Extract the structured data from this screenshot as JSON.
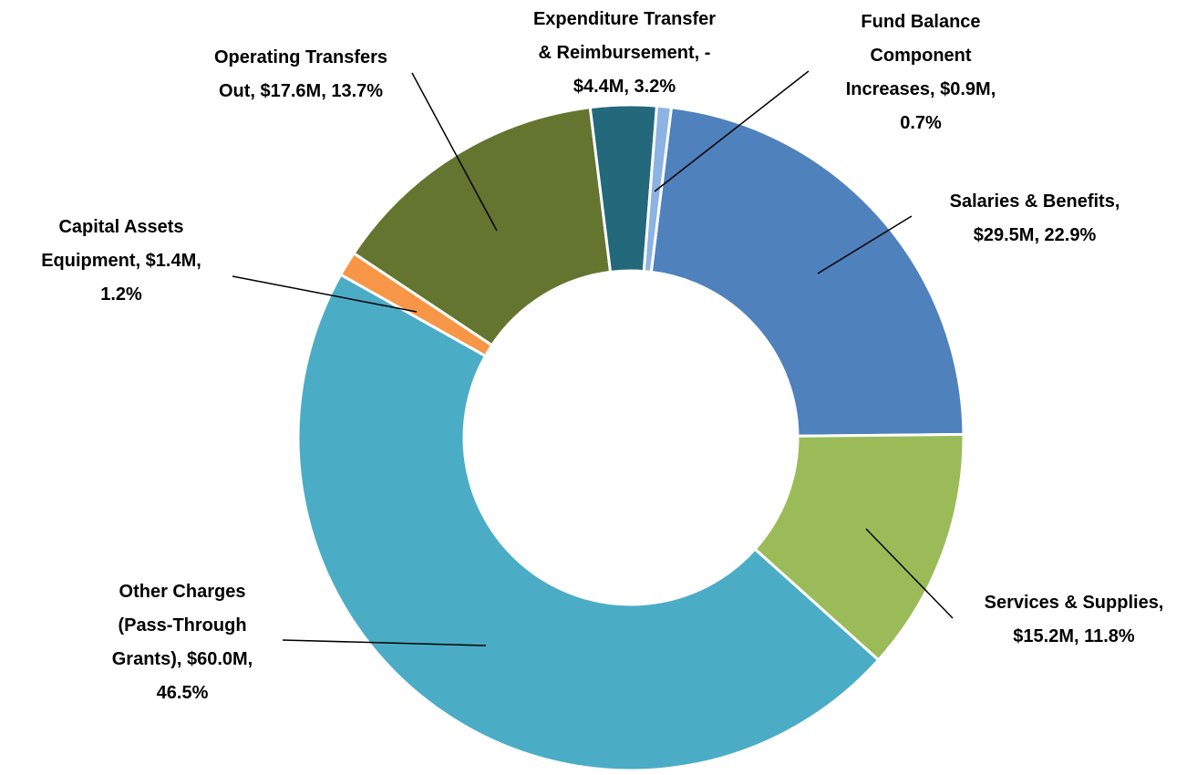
{
  "chart_data": {
    "type": "donut",
    "categories": [
      "Salaries & Benefits",
      "Services & Supplies",
      "Other Charges (Pass-Through Grants)",
      "Capital Assets Equipment",
      "Operating Transfers Out",
      "Expenditure Transfer & Reimbursement",
      "Fund Balance Component Increases"
    ],
    "values": [
      22.9,
      11.8,
      46.5,
      1.2,
      13.7,
      3.2,
      0.7
    ],
    "value_labels": [
      "Salaries & Benefits, $29.5M, 22.9%",
      "Services & Supplies, $15.2M, 11.8%",
      "Other Charges (Pass-Through Grants), $60.0M, 46.5%",
      "Capital Assets Equipment, $1.4M, 1.2%",
      "Operating Transfers Out, $17.6M, 13.7%",
      "Expenditure Transfer & Reimbursement, -$4.4M, 3.2%",
      "Fund Balance Component Increases, $0.9M, 0.7%"
    ],
    "colors": [
      "#4f81bd",
      "#9bbb59",
      "#4bacc6",
      "#f79646",
      "#63752f",
      "#23687b",
      "#8db3e2"
    ]
  }
}
